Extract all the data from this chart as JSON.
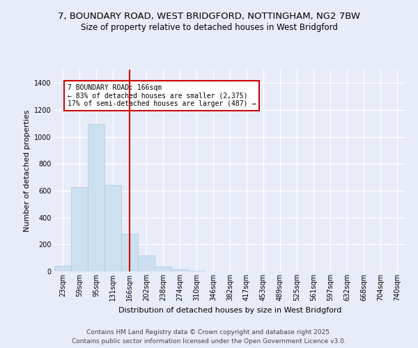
{
  "title_line1": "7, BOUNDARY ROAD, WEST BRIDGFORD, NOTTINGHAM, NG2 7BW",
  "title_line2": "Size of property relative to detached houses in West Bridgford",
  "xlabel": "Distribution of detached houses by size in West Bridgford",
  "ylabel": "Number of detached properties",
  "categories": [
    "23sqm",
    "59sqm",
    "95sqm",
    "131sqm",
    "166sqm",
    "202sqm",
    "238sqm",
    "274sqm",
    "310sqm",
    "346sqm",
    "382sqm",
    "417sqm",
    "453sqm",
    "489sqm",
    "525sqm",
    "561sqm",
    "597sqm",
    "632sqm",
    "668sqm",
    "704sqm",
    "740sqm"
  ],
  "values": [
    40,
    625,
    1095,
    640,
    280,
    120,
    35,
    15,
    5,
    0,
    0,
    0,
    0,
    0,
    0,
    0,
    0,
    0,
    0,
    0,
    0
  ],
  "bar_color": "#cce0f0",
  "bar_edge_color": "#a8c8e8",
  "vline_x_idx": 4,
  "vline_color": "#cc0000",
  "annotation_text": "7 BOUNDARY ROAD: 166sqm\n← 83% of detached houses are smaller (2,375)\n17% of semi-detached houses are larger (487) →",
  "annotation_box_color": "#cc0000",
  "ylim_max": 1500,
  "yticks": [
    0,
    200,
    400,
    600,
    800,
    1000,
    1200,
    1400
  ],
  "background_color": "#e8ecf8",
  "grid_color": "#ffffff",
  "footer_line1": "Contains HM Land Registry data © Crown copyright and database right 2025.",
  "footer_line2": "Contains public sector information licensed under the Open Government Licence v3.0.",
  "title_fontsize": 9.5,
  "subtitle_fontsize": 8.5,
  "axis_label_fontsize": 8,
  "tick_fontsize": 7,
  "annotation_fontsize": 7,
  "footer_fontsize": 6.5
}
